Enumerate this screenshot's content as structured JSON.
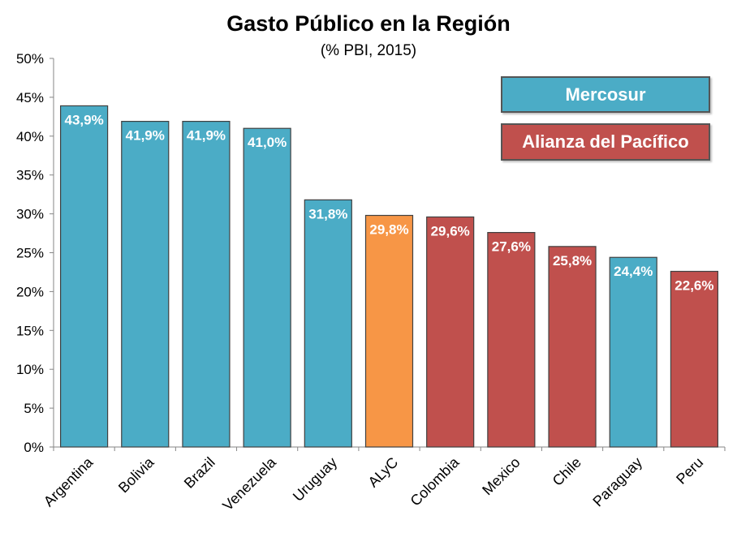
{
  "chart_data": {
    "type": "bar",
    "title": "Gasto Público en la Región",
    "subtitle": "(% PBI, 2015)",
    "categories": [
      "Argentina",
      "Bolivia",
      "Brazil",
      "Venezuela",
      "Uruguay",
      "ALyC",
      "Colombia",
      "Mexico",
      "Chile",
      "Paraguay",
      "Peru"
    ],
    "values": [
      43.9,
      41.9,
      41.9,
      41.0,
      31.8,
      29.8,
      29.6,
      27.6,
      25.8,
      24.4,
      22.6
    ],
    "data_labels": [
      "43,9%",
      "41,9%",
      "41,9%",
      "41,0%",
      "31,8%",
      "29,8%",
      "29,6%",
      "27,6%",
      "25,8%",
      "24,4%",
      "22,6%"
    ],
    "groups": [
      "mercosur",
      "mercosur",
      "mercosur",
      "mercosur",
      "mercosur",
      "alyc",
      "alianza",
      "alianza",
      "alianza",
      "mercosur",
      "alianza"
    ],
    "colors": {
      "mercosur": "#4BACC6",
      "alianza": "#C0504D",
      "alyc": "#F79646"
    },
    "ylim": [
      0,
      50
    ],
    "yticks": [
      0,
      5,
      10,
      15,
      20,
      25,
      30,
      35,
      40,
      45,
      50
    ],
    "ytick_labels": [
      "0%",
      "5%",
      "10%",
      "15%",
      "20%",
      "25%",
      "30%",
      "35%",
      "40%",
      "45%",
      "50%"
    ],
    "xlabel": "",
    "ylabel": "",
    "grid": false,
    "legend": {
      "placement": "top-right",
      "entries": [
        {
          "name": "Mercosur",
          "color": "#4BACC6"
        },
        {
          "name": "Alianza  del Pacífico",
          "color": "#C0504D"
        }
      ]
    }
  }
}
